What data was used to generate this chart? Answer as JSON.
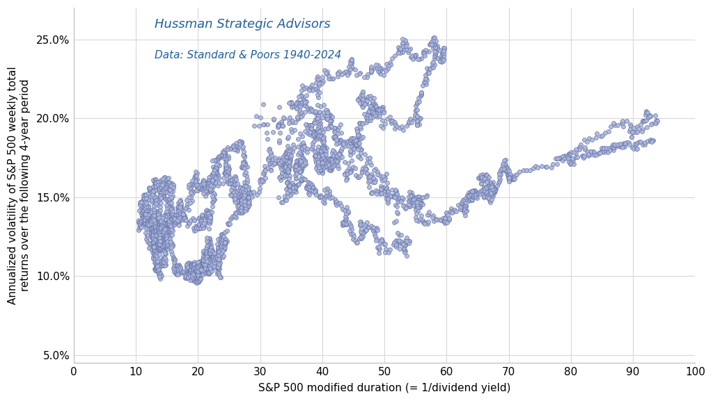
{
  "title_line1": "Hussman Strategic Advisors",
  "title_line2": "Data: Standard & Poors 1940-2024",
  "xlabel": "S&P 500 modified duration (= 1/dividend yield)",
  "ylabel": "Annualized volatility of S&P 500 weekly total\nreturns over the following 4-year period",
  "xlim": [
    0,
    100
  ],
  "ylim": [
    0.045,
    0.27
  ],
  "xticks": [
    0,
    10,
    20,
    30,
    40,
    50,
    60,
    70,
    80,
    90,
    100
  ],
  "yticks": [
    0.05,
    0.1,
    0.15,
    0.2,
    0.25
  ],
  "ytick_labels": [
    "5.0%",
    "10.0%",
    "15.0%",
    "20.0%",
    "25.0%"
  ],
  "dot_facecolor": "#b0b8d8",
  "dot_edgecolor": "#6878b0",
  "dot_size": 18,
  "dot_linewidth": 0.6,
  "dot_alpha": 0.9,
  "background_color": "#ffffff",
  "grid_color": "#d8d8d8",
  "title_color": "#2060a0",
  "label_color": "#000000",
  "title_fontsize": 13,
  "subtitle_fontsize": 11,
  "axis_label_fontsize": 11,
  "tick_fontsize": 11,
  "seed": 1940
}
